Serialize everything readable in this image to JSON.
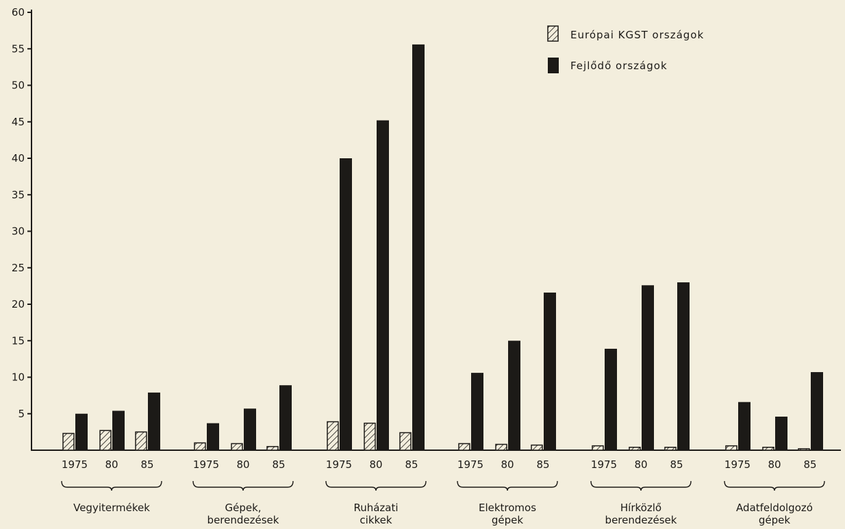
{
  "chart_data": {
    "type": "bar",
    "ylim": [
      0,
      60
    ],
    "yticks": [
      5,
      10,
      15,
      20,
      25,
      30,
      35,
      40,
      45,
      50,
      55,
      60
    ],
    "grid": false,
    "legend_position": "top-right",
    "groups": [
      {
        "label": "Vegyitermékek",
        "years": [
          "1975",
          "80",
          "85"
        ]
      },
      {
        "label": "Gépek, berendezések",
        "years": [
          "1975",
          "80",
          "85"
        ]
      },
      {
        "label": "Ruházati cikkek",
        "years": [
          "1975",
          "80",
          "85"
        ]
      },
      {
        "label": "Elektromos gépek",
        "years": [
          "1975",
          "80",
          "85"
        ]
      },
      {
        "label": "Hírközlő berendezések",
        "years": [
          "1975",
          "80",
          "85"
        ]
      },
      {
        "label": "Adatfeldolgozó gépek",
        "years": [
          "1975",
          "80",
          "85"
        ]
      }
    ],
    "series": [
      {
        "name": "Európai KGST országok",
        "pattern": "hatched",
        "values": [
          [
            2.3,
            2.7,
            2.5
          ],
          [
            1.0,
            0.9,
            0.5
          ],
          [
            3.9,
            3.7,
            2.4
          ],
          [
            0.9,
            0.8,
            0.7
          ],
          [
            0.6,
            0.4,
            0.4
          ],
          [
            0.6,
            0.4,
            0.2
          ]
        ]
      },
      {
        "name": "Fejlődő országok",
        "pattern": "solid",
        "values": [
          [
            5.0,
            5.4,
            7.9
          ],
          [
            3.7,
            5.7,
            8.9
          ],
          [
            40.0,
            45.2,
            55.6
          ],
          [
            10.6,
            15.0,
            21.6
          ],
          [
            13.9,
            22.6,
            23.0
          ],
          [
            6.6,
            4.6,
            10.7
          ]
        ]
      }
    ]
  },
  "colors": {
    "background": "#f3eedd",
    "solid_bar": "#1c1a17",
    "hatch": "#1c1a17"
  }
}
